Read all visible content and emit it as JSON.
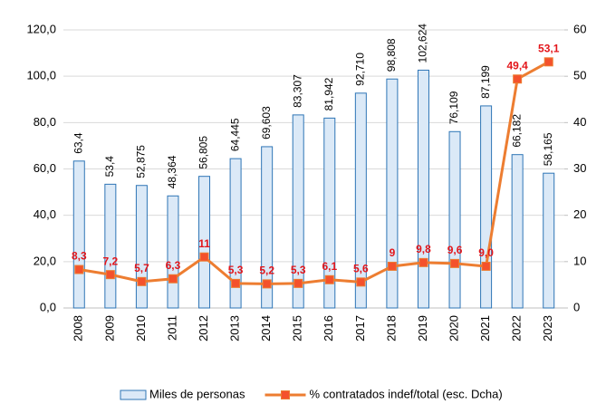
{
  "chart_data": {
    "type": "combo",
    "categories": [
      "2008",
      "2009",
      "2010",
      "2011",
      "2012",
      "2013",
      "2014",
      "2015",
      "2016",
      "2017",
      "2018",
      "2019",
      "2020",
      "2021",
      "2022",
      "2023"
    ],
    "series": [
      {
        "name": "Miles de personas",
        "type": "bar",
        "axis": "y",
        "color": "#dbe9f7",
        "stroke": "#2e75b6",
        "values": [
          63.4,
          53.4,
          52.875,
          48.364,
          56.805,
          64.445,
          69.603,
          83.307,
          81.942,
          92.71,
          98.808,
          102.624,
          76.109,
          87.199,
          66.182,
          58.165
        ],
        "value_labels": [
          "63,4",
          "53,4",
          "52,875",
          "48,364",
          "56,805",
          "64,445",
          "69,603",
          "83,307",
          "81,942",
          "92,710",
          "98,808",
          "102,624",
          "76,109",
          "87,199",
          "66,182",
          "58,165"
        ]
      },
      {
        "name": "% contratados indef/total (esc. Dcha)",
        "type": "line",
        "axis": "y2",
        "color": "#ed7d31",
        "marker_color": "#f4512c",
        "label_color": "#e3161b",
        "values": [
          8.3,
          7.2,
          5.7,
          6.3,
          11,
          5.3,
          5.2,
          5.3,
          6.1,
          5.6,
          9,
          9.8,
          9.6,
          9.0,
          49.4,
          53.1
        ],
        "value_labels": [
          "8,3",
          "7,2",
          "5,7",
          "6,3",
          "11",
          "5,3",
          "5,2",
          "5,3",
          "6,1",
          "5,6",
          "9",
          "9,8",
          "9,6",
          "9,0",
          "49,4",
          "53,1"
        ]
      }
    ],
    "ylim": [
      0,
      120
    ],
    "yticks": [
      {
        "value": 0,
        "label": "0,0"
      },
      {
        "value": 20,
        "label": "20,0"
      },
      {
        "value": 40,
        "label": "40,0"
      },
      {
        "value": 60,
        "label": "60,0"
      },
      {
        "value": 80,
        "label": "80,0"
      },
      {
        "value": 100,
        "label": "100,0"
      },
      {
        "value": 120,
        "label": "120,0"
      }
    ],
    "y2lim": [
      0,
      60
    ],
    "y2ticks": [
      0,
      10,
      20,
      30,
      40,
      50,
      60
    ],
    "grid": true,
    "legend": "bottom"
  }
}
